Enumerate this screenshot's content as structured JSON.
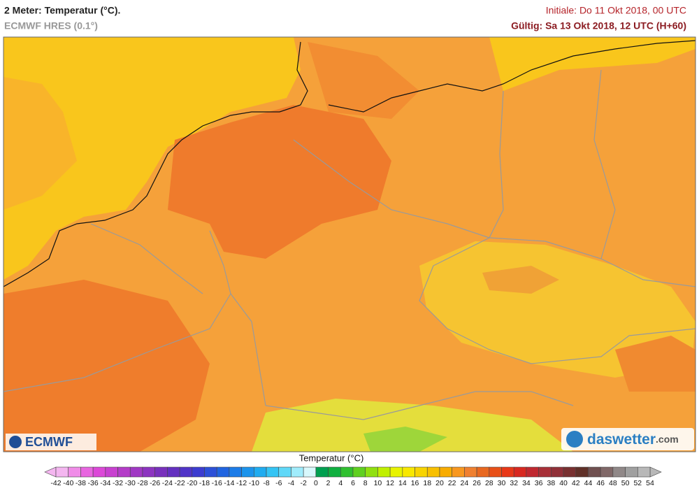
{
  "header": {
    "title": "2 Meter: Temperatur (°C).",
    "subtitle": "ECMWF HRES (0.1°)",
    "initial": "Initiale: Do 11 Okt 2018, 00 UTC",
    "valid": "Gültig: Sa 13 Okt 2018, 12 UTC (H+60)"
  },
  "logos": {
    "left": "ECMWF",
    "right_main": "daswetter",
    "right_suffix": ".com"
  },
  "legend": {
    "title": "Temperatur (°C)",
    "labels": [
      -42,
      -40,
      -38,
      -36,
      -34,
      -32,
      -30,
      -28,
      -26,
      -24,
      -22,
      -20,
      -18,
      -16,
      -14,
      -12,
      -10,
      -8,
      -6,
      -4,
      -2,
      0,
      2,
      4,
      6,
      8,
      10,
      12,
      14,
      16,
      18,
      20,
      22,
      24,
      26,
      28,
      30,
      32,
      34,
      36,
      38,
      40,
      42,
      44,
      46,
      48,
      50,
      52,
      54
    ],
    "colors": [
      "#f4b6f0",
      "#f08ce8",
      "#e866e0",
      "#dc48d8",
      "#c840d0",
      "#b43cc8",
      "#a038c4",
      "#8c34c0",
      "#7830bc",
      "#6430c0",
      "#5034c8",
      "#3c3cd0",
      "#2c50d8",
      "#2064e0",
      "#1c7ce8",
      "#1c94ec",
      "#20acf0",
      "#34c4f4",
      "#60d8f8",
      "#a0ecfc",
      "#d8f8fc",
      "#00a050",
      "#10b040",
      "#30c030",
      "#60d020",
      "#90e010",
      "#c0f000",
      "#e8f400",
      "#f8e800",
      "#f8d400",
      "#f8c000",
      "#f8ac00",
      "#f89820",
      "#f08030",
      "#e86820",
      "#e85018",
      "#e83818",
      "#d82820",
      "#c02830",
      "#a83038",
      "#903038",
      "#783030",
      "#603028",
      "#705050",
      "#806868",
      "#908888",
      "#a0a0a0",
      "#b8b8b8"
    ]
  }
}
